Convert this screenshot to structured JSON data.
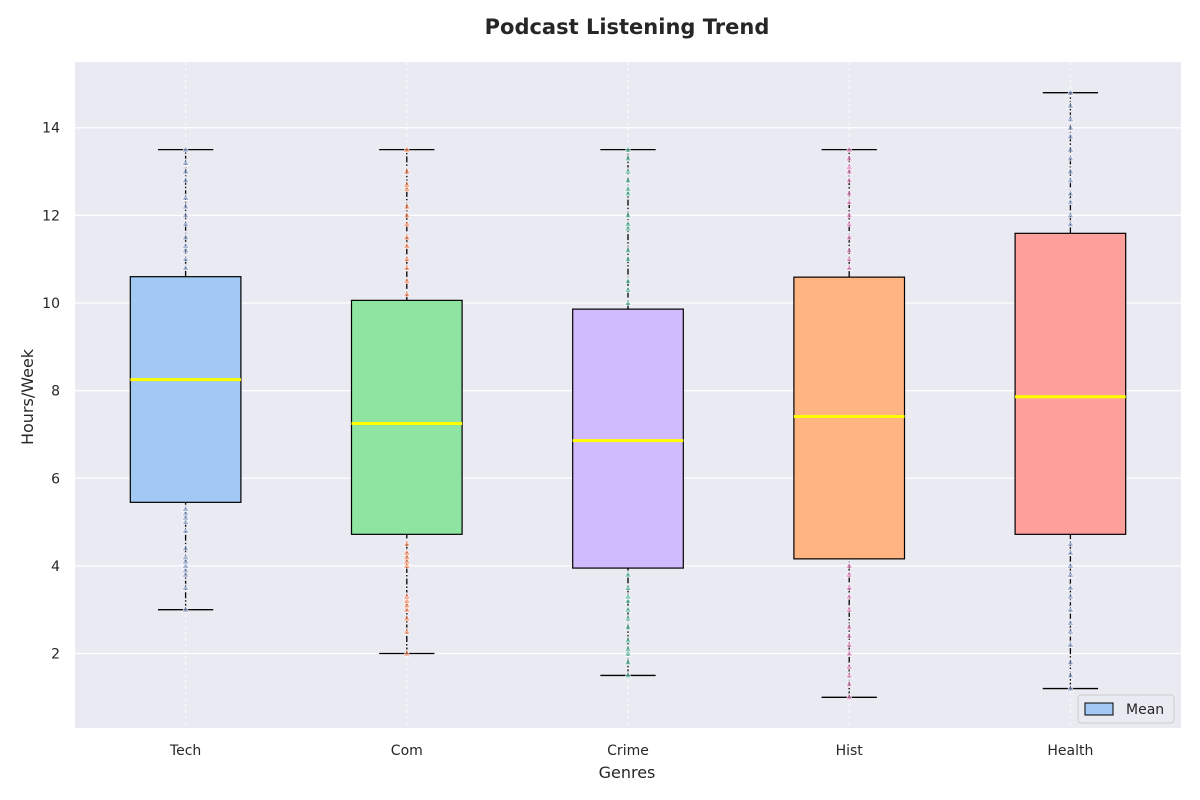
{
  "chart_data": {
    "type": "box",
    "title": "Podcast Listening Trend",
    "xlabel": "Genres",
    "ylabel": "Hours/Week",
    "ylim": [
      0.3,
      15.5
    ],
    "yticks": [
      2,
      4,
      6,
      8,
      10,
      12,
      14
    ],
    "grid": true,
    "legend": {
      "label": "Mean",
      "placement": "bottom-right"
    },
    "categories": [
      "Tech",
      "Com",
      "Crime",
      "Hist",
      "Health"
    ],
    "boxes": [
      {
        "category": "Tech",
        "whisker_low": 3.0,
        "q1": 5.45,
        "median": 8.25,
        "q3": 10.6,
        "whisker_high": 13.5,
        "color": "#a1c9f4",
        "marker_color": "#8da0cb",
        "points": [
          3.0,
          3.5,
          3.8,
          3.9,
          4.0,
          4.1,
          4.2,
          4.4,
          4.8,
          5.0,
          5.1,
          5.2,
          5.3,
          10.8,
          11.0,
          11.2,
          11.3,
          11.5,
          11.8,
          12.0,
          12.2,
          12.4,
          12.8,
          13.0,
          13.2,
          13.5
        ]
      },
      {
        "category": "Com",
        "whisker_low": 2.0,
        "q1": 4.72,
        "median": 7.25,
        "q3": 10.06,
        "whisker_high": 13.5,
        "color": "#8de5a1",
        "marker_color": "#fc8d62",
        "points": [
          2.0,
          2.5,
          2.8,
          3.0,
          3.1,
          3.2,
          3.3,
          4.0,
          4.1,
          4.2,
          4.3,
          4.5,
          10.2,
          10.5,
          10.8,
          11.0,
          11.3,
          11.5,
          11.8,
          12.0,
          12.2,
          12.6,
          12.7,
          13.0,
          13.5
        ]
      },
      {
        "category": "Crime",
        "whisker_low": 1.5,
        "q1": 3.95,
        "median": 6.86,
        "q3": 9.86,
        "whisker_high": 13.5,
        "color": "#d0bbff",
        "marker_color": "#66c2a5",
        "points": [
          1.5,
          1.8,
          2.0,
          2.1,
          2.3,
          2.6,
          2.8,
          3.0,
          3.2,
          3.3,
          3.5,
          3.8,
          10.0,
          10.3,
          10.5,
          11.0,
          11.2,
          11.7,
          11.8,
          12.0,
          12.5,
          12.6,
          12.8,
          13.0,
          13.3,
          13.5
        ]
      },
      {
        "category": "Hist",
        "whisker_low": 1.0,
        "q1": 4.16,
        "median": 7.41,
        "q3": 10.59,
        "whisker_high": 13.5,
        "color": "#ffb482",
        "marker_color": "#e78ac3",
        "points": [
          1.0,
          1.3,
          1.5,
          1.7,
          2.0,
          2.2,
          2.4,
          2.6,
          3.0,
          3.3,
          3.5,
          3.8,
          4.0,
          10.8,
          11.0,
          11.2,
          11.5,
          11.8,
          12.0,
          12.3,
          12.5,
          12.8,
          13.0,
          13.1,
          13.3,
          13.5
        ]
      },
      {
        "category": "Health",
        "whisker_low": 1.2,
        "q1": 4.72,
        "median": 7.86,
        "q3": 11.59,
        "whisker_high": 14.8,
        "color": "#ff9f9b",
        "marker_color": "#8da0cb",
        "points": [
          1.2,
          1.5,
          1.8,
          2.2,
          2.5,
          2.7,
          3.0,
          3.3,
          3.5,
          3.8,
          4.0,
          4.3,
          4.5,
          11.8,
          12.0,
          12.3,
          12.5,
          12.8,
          13.0,
          13.3,
          13.5,
          13.8,
          14.0,
          14.2,
          14.5,
          14.8
        ]
      }
    ],
    "colors": {
      "plot_background": "#eaeaf2",
      "grid": "#ffffff",
      "median_line": "#ffff00",
      "box_edge": "#000000",
      "legend_patch": "#a1c9f4"
    }
  }
}
